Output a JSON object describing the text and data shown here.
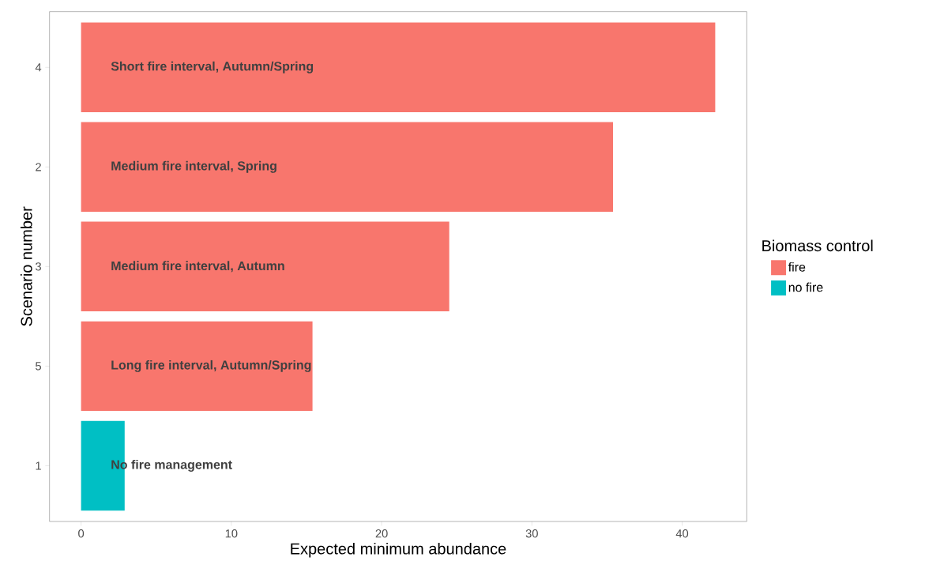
{
  "chart_data": {
    "type": "bar",
    "orientation": "horizontal",
    "xlabel": "Expected minimum abundance",
    "ylabel": "Scenario number",
    "legend_title": "Biomass control",
    "categories": [
      "4",
      "2",
      "3",
      "5",
      "1"
    ],
    "series": [
      {
        "name": "fire",
        "color": "#f8766d",
        "values": [
          42.2,
          35.4,
          24.5,
          15.4,
          null
        ]
      },
      {
        "name": "no fire",
        "color": "#00bfc4",
        "values": [
          null,
          null,
          null,
          null,
          2.9
        ]
      }
    ],
    "xlim": [
      -2.1,
      44.3
    ],
    "xticks": [
      0,
      10,
      20,
      30,
      40
    ],
    "grid": false,
    "legend": "right",
    "annotations": [
      "Short fire interval, Autumn/Spring",
      "Medium fire interval, Spring",
      "Medium fire interval, Autumn",
      "Long fire interval, Autumn/Spring",
      "No fire management"
    ]
  }
}
